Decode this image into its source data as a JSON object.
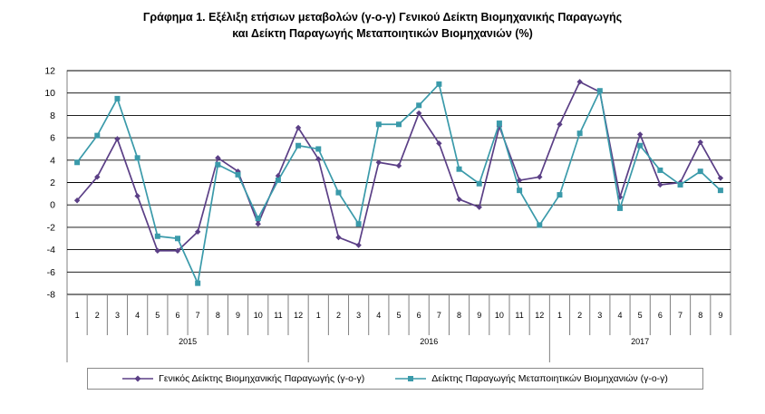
{
  "title": {
    "line1": "Γράφημα 1. Εξέλιξη ετήσιων μεταβολών (γ-ο-γ) Γενικού Δείκτη Βιομηχανικής Παραγωγής",
    "line2": "και Δείκτη Παραγωγής Μεταποιητικών Βιομηχανιών (%)"
  },
  "legend": {
    "item1": "Γενικός Δείκτης Βιομηχανικής Παραγωγής (γ-ο-γ)",
    "item2": "Δείκτης Παραγωγής Μεταποιητικών Βιομηχανιών (γ-ο-γ)"
  },
  "chart_data": {
    "type": "line",
    "title": "Γράφημα 1. Εξέλιξη ετήσιων μεταβολών (γ-ο-γ) Γενικού Δείκτη Βιομηχανικής Παραγωγής και Δείκτη Παραγωγής Μεταποιητικών Βιομηχανιών (%)",
    "xlabel": "",
    "ylabel": "",
    "ylim": [
      -8,
      12
    ],
    "yticks": [
      -8,
      -6,
      -4,
      -2,
      0,
      2,
      4,
      6,
      8,
      10,
      12
    ],
    "grid": true,
    "legend_position": "bottom",
    "x": [
      "1",
      "2",
      "3",
      "4",
      "5",
      "6",
      "7",
      "8",
      "9",
      "10",
      "11",
      "12",
      "1",
      "2",
      "3",
      "4",
      "5",
      "6",
      "7",
      "8",
      "9",
      "10",
      "11",
      "12",
      "1",
      "2",
      "3",
      "4",
      "5",
      "6",
      "7",
      "8",
      "9"
    ],
    "year_groups": [
      {
        "label": "2015",
        "count": 12
      },
      {
        "label": "2016",
        "count": 12
      },
      {
        "label": "2017",
        "count": 9
      }
    ],
    "series": [
      {
        "name": "Γενικός Δείκτης Βιομηχανικής Παραγωγής (γ-ο-γ)",
        "color": "#5b3f86",
        "marker": "diamond",
        "values": [
          0.4,
          2.5,
          5.9,
          0.8,
          -4.1,
          -4.1,
          -2.4,
          4.2,
          3.0,
          -1.7,
          2.6,
          6.9,
          4.1,
          -2.9,
          -3.6,
          3.8,
          3.5,
          8.2,
          5.5,
          0.5,
          -0.2,
          7.0,
          2.2,
          2.5,
          7.2,
          11.0,
          10.1,
          0.7,
          6.3,
          1.8,
          2.0,
          5.6,
          2.4
        ]
      },
      {
        "name": "Δείκτης Παραγωγής Μεταποιητικών Βιομηχανιών (γ-ο-γ)",
        "color": "#3a9aaa",
        "marker": "square",
        "values": [
          3.8,
          6.2,
          9.5,
          4.2,
          -2.8,
          -3.0,
          -7.0,
          3.6,
          2.7,
          -1.2,
          2.2,
          5.3,
          5.0,
          1.1,
          -1.7,
          7.2,
          7.2,
          8.9,
          10.8,
          3.2,
          1.9,
          7.3,
          1.3,
          -1.8,
          0.9,
          6.4,
          10.2,
          -0.3,
          5.3,
          3.1,
          1.8,
          3.0,
          1.3
        ]
      }
    ]
  }
}
